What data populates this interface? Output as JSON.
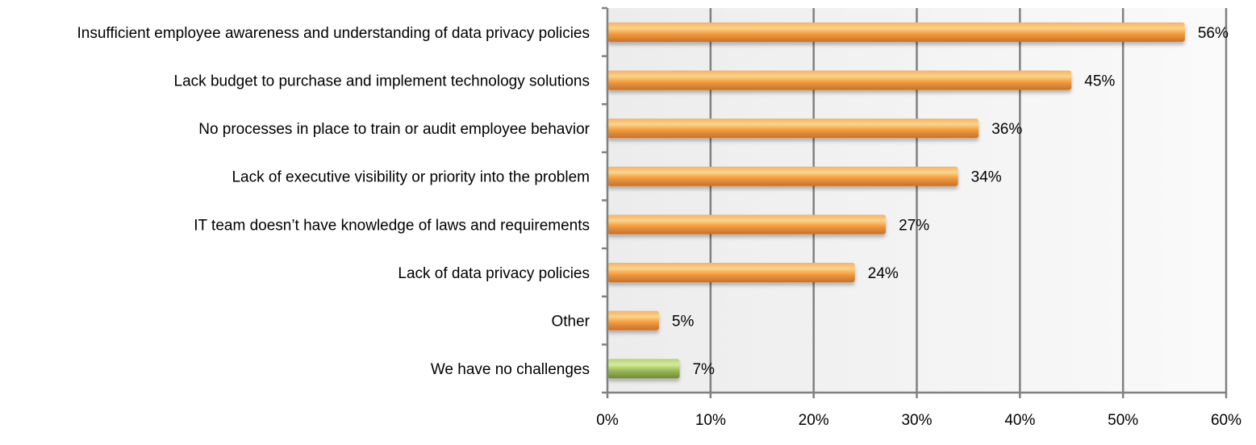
{
  "chart_data": {
    "type": "bar",
    "orientation": "horizontal",
    "title": "",
    "xlabel": "",
    "ylabel": "",
    "categories": [
      "Insufficient employee awareness and understanding of data privacy policies",
      "Lack budget to purchase and implement technology solutions",
      "No processes in place to train or audit employee behavior",
      "Lack of executive visibility or priority into the problem",
      "IT team doesn’t have knowledge of laws and requirements",
      "Lack of data privacy policies",
      "Other",
      "We have no challenges"
    ],
    "values": [
      56,
      45,
      36,
      34,
      27,
      24,
      5,
      7
    ],
    "data_labels": [
      "56%",
      "45%",
      "36%",
      "34%",
      "27%",
      "24%",
      "5%",
      "7%"
    ],
    "bar_colors": [
      "#f39a3c",
      "#f39a3c",
      "#f39a3c",
      "#f39a3c",
      "#f39a3c",
      "#f39a3c",
      "#f39a3c",
      "#9bbb59"
    ],
    "xlim": [
      0,
      60
    ],
    "x_ticks": [
      0,
      10,
      20,
      30,
      40,
      50,
      60
    ],
    "x_tick_labels": [
      "0%",
      "10%",
      "20%",
      "30%",
      "40%",
      "50%",
      "60%"
    ],
    "grid": true,
    "legend": "none"
  }
}
